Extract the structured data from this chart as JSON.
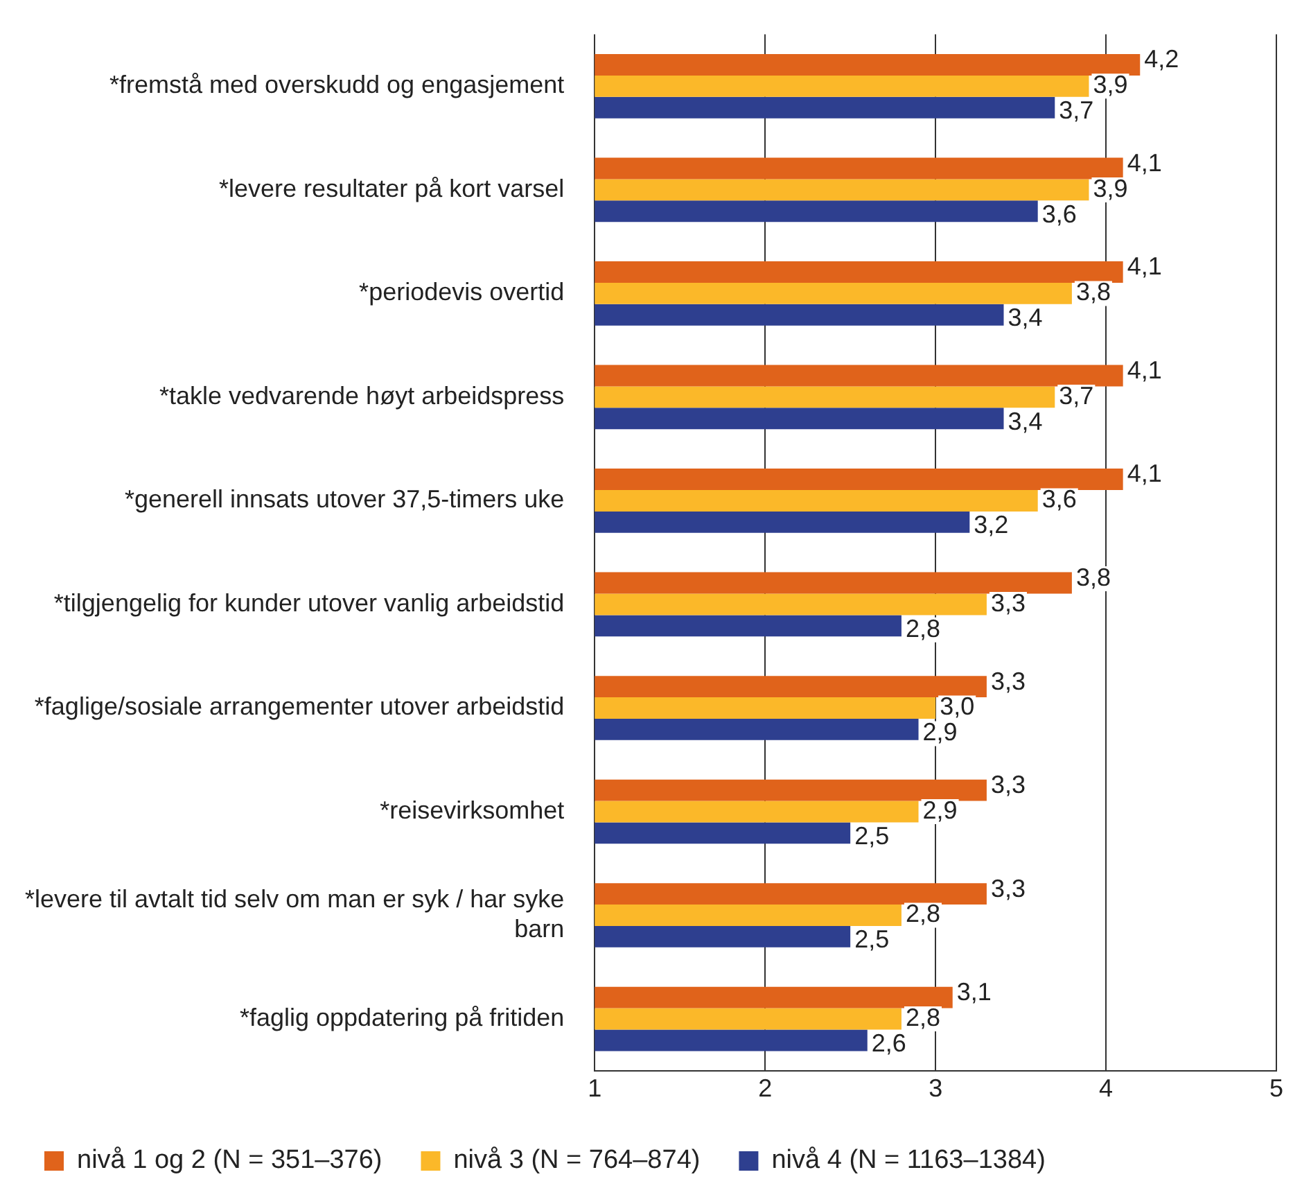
{
  "chart_data": {
    "type": "bar",
    "orientation": "horizontal",
    "categories": [
      "*fremstå med overskudd og engasjement",
      "*levere resultater på kort varsel",
      "*periodevis overtid",
      "*takle vedvarende høyt arbeidspress",
      "*generell innsats utover 37,5-timers uke",
      "*tilgjengelig for kunder utover vanlig arbeidstid",
      "*faglige/sosiale arrangementer utover arbeidstid",
      "*reisevirksomhet",
      "*levere til avtalt tid selv om man er syk / har syke barn",
      "*faglig oppdatering på fritiden"
    ],
    "series": [
      {
        "name": "nivå 1 og 2 (N = 351–376)",
        "color": "#e0631b",
        "values": [
          4.2,
          4.1,
          4.1,
          4.1,
          4.1,
          3.8,
          3.3,
          3.3,
          3.3,
          3.1
        ],
        "value_labels": [
          "4,2",
          "4,1",
          "4,1",
          "4,1",
          "4,1",
          "3,8",
          "3,3",
          "3,3",
          "3,3",
          "3,1"
        ]
      },
      {
        "name": "nivå 3 (N = 764–874)",
        "color": "#fbb829",
        "values": [
          3.9,
          3.9,
          3.8,
          3.7,
          3.6,
          3.3,
          3.0,
          2.9,
          2.8,
          2.8
        ],
        "value_labels": [
          "3,9",
          "3,9",
          "3,8",
          "3,7",
          "3,6",
          "3,3",
          "3,0",
          "2,9",
          "2,8",
          "2,8"
        ]
      },
      {
        "name": "nivå 4 (N = 1163–1384)",
        "color": "#2e3f8f",
        "values": [
          3.7,
          3.6,
          3.4,
          3.4,
          3.2,
          2.8,
          2.9,
          2.5,
          2.5,
          2.6
        ],
        "value_labels": [
          "3,7",
          "3,6",
          "3,4",
          "3,4",
          "3,2",
          "2,8",
          "2,9",
          "2,5",
          "2,5",
          "2,6"
        ]
      }
    ],
    "xlim": [
      1,
      5
    ],
    "xticks": [
      1,
      2,
      3,
      4,
      5
    ],
    "grid": "x",
    "legend": "bottom"
  }
}
